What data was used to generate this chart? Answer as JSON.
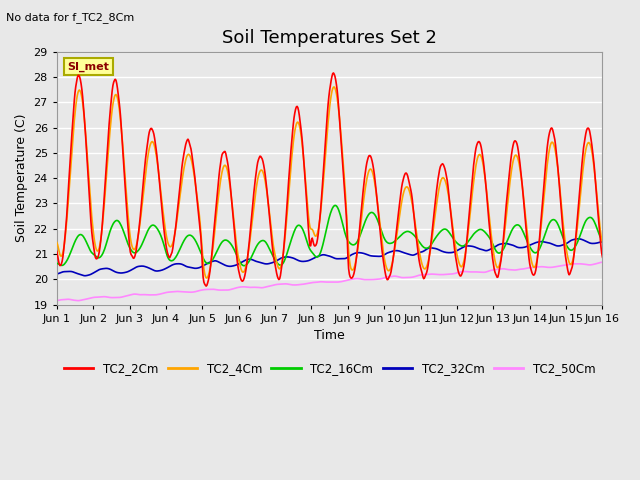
{
  "title": "Soil Temperatures Set 2",
  "subtitle": "No data for f_TC2_8Cm",
  "xlabel": "Time",
  "ylabel": "Soil Temperature (C)",
  "ylim": [
    19.0,
    29.0
  ],
  "yticks": [
    19.0,
    20.0,
    21.0,
    22.0,
    23.0,
    24.0,
    25.0,
    26.0,
    27.0,
    28.0,
    29.0
  ],
  "xtick_labels": [
    "Jun 1",
    "Jun 2",
    "Jun 3",
    "Jun 4",
    "Jun 5",
    "Jun 6",
    "Jun 7",
    "Jun 8",
    "Jun 9",
    "Jun 10",
    "Jun 11",
    "Jun 12",
    "Jun 13",
    "Jun 14",
    "Jun 15",
    "Jun 16"
  ],
  "series": {
    "TC2_2Cm": {
      "color": "#FF0000",
      "lw": 1.2
    },
    "TC2_4Cm": {
      "color": "#FFA500",
      "lw": 1.2
    },
    "TC2_16Cm": {
      "color": "#00CC00",
      "lw": 1.2
    },
    "TC2_32Cm": {
      "color": "#0000BB",
      "lw": 1.2
    },
    "TC2_50Cm": {
      "color": "#FF88FF",
      "lw": 1.2
    }
  },
  "legend_box_color": "#FFFF99",
  "legend_box_label": "SI_met",
  "background_color": "#E8E8E8",
  "plot_bg_color": "#E8E8E8",
  "grid_color": "#FFFFFF",
  "title_fontsize": 13,
  "label_fontsize": 9,
  "tick_fontsize": 8
}
